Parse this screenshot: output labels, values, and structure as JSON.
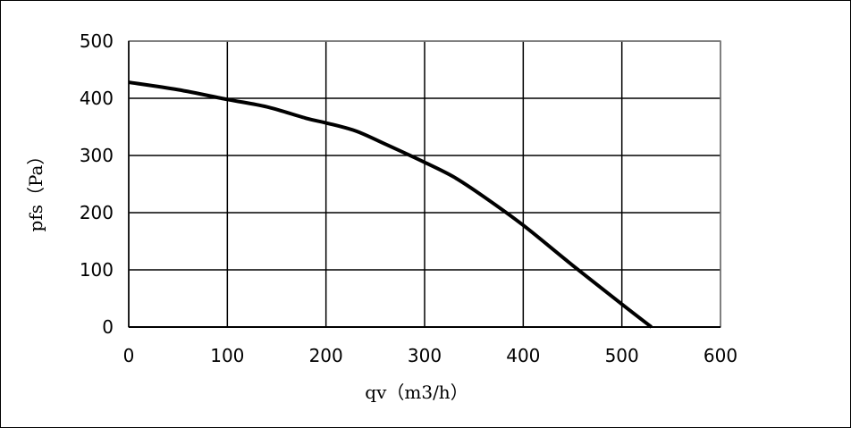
{
  "chart_data": {
    "type": "line",
    "title": "",
    "xlabel": "qv（m3/h）",
    "ylabel": "pfs（Pa）",
    "xlim": [
      0,
      600
    ],
    "ylim": [
      0,
      500
    ],
    "xticks": [
      "0",
      "100",
      "200",
      "300",
      "400",
      "500",
      "600"
    ],
    "yticks": [
      "0",
      "100",
      "200",
      "300",
      "400",
      "500"
    ],
    "grid": true,
    "legend": "none",
    "series": [
      {
        "color": "#000000",
        "x": [
          0,
          50,
          100,
          140,
          180,
          200,
          230,
          260,
          300,
          330,
          360,
          400,
          450,
          500,
          530
        ],
        "y": [
          428,
          415,
          398,
          385,
          365,
          357,
          343,
          320,
          288,
          262,
          228,
          178,
          108,
          40,
          0
        ]
      }
    ]
  }
}
